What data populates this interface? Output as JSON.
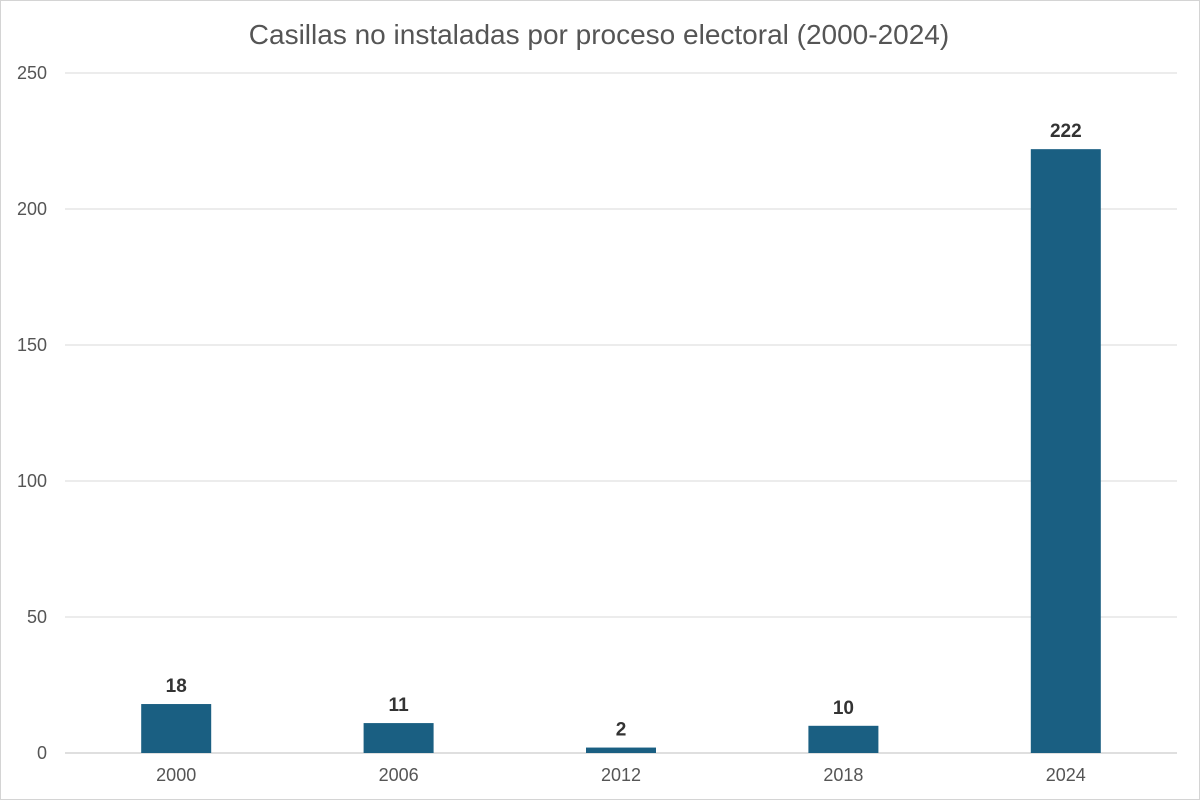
{
  "chart_data": {
    "type": "bar",
    "title": "Casillas no instaladas por proceso electoral (2000-2024)",
    "xlabel": "",
    "ylabel": "",
    "categories": [
      "2000",
      "2006",
      "2012",
      "2018",
      "2024"
    ],
    "values": [
      18,
      11,
      2,
      10,
      222
    ],
    "data_labels": [
      "18",
      "11",
      "2",
      "10",
      "222"
    ],
    "ylim": [
      0,
      250
    ],
    "yticks": [
      0,
      50,
      100,
      150,
      200,
      250
    ],
    "ytick_labels": [
      "0",
      "50",
      "100",
      "150",
      "200",
      "250"
    ],
    "grid": true,
    "legend": "none",
    "bar_color": "#1a5f82"
  }
}
